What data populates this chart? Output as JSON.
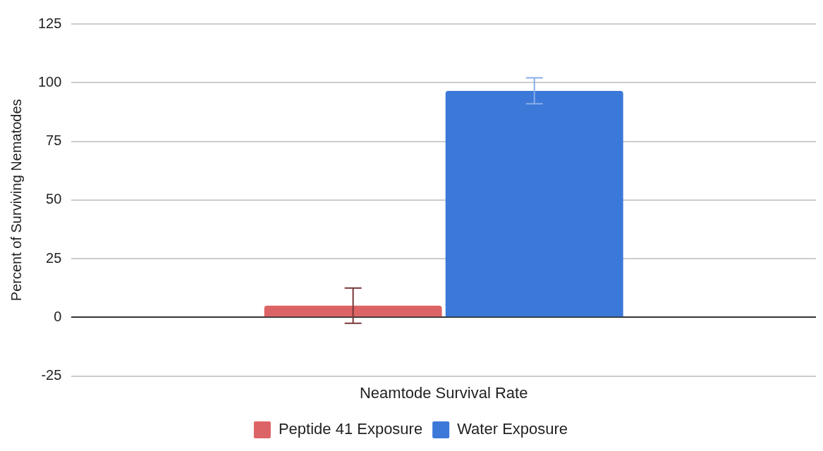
{
  "chart_data": {
    "type": "bar",
    "ylabel": "Percent of Surviving Nematodes",
    "categories": [
      "Neamtode Survival Rate"
    ],
    "series": [
      {
        "name": "Peptide 41 Exposure",
        "color": "#dd6466",
        "values": [
          5
        ],
        "errors": [
          7.5
        ]
      },
      {
        "name": "Water Exposure",
        "color": "#3b78d8",
        "values": [
          96.5
        ],
        "errors": [
          5.5
        ]
      }
    ],
    "ylim": [
      -25,
      125
    ],
    "yticks": [
      -25,
      0,
      25,
      50,
      75,
      100,
      125
    ],
    "grid": "y",
    "legend": "bottom"
  }
}
